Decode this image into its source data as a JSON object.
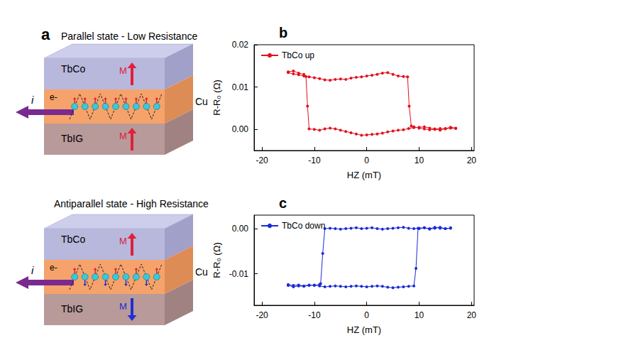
{
  "diagram": {
    "panel": "a",
    "states": [
      {
        "title": "Parallel state - Low Resistance",
        "layers": [
          "TbCo",
          "Cu",
          "TbIG"
        ],
        "electron": "e-",
        "current": "i",
        "magnetization": [
          {
            "label": "M",
            "direction": "up"
          },
          {
            "label": "M",
            "direction": "up"
          }
        ]
      },
      {
        "title": "Antiparallel state - High Resistance",
        "layers": [
          "TbCo",
          "Cu",
          "TbIG"
        ],
        "electron": "e-",
        "current": "i",
        "magnetization": [
          {
            "label": "M",
            "direction": "up"
          },
          {
            "label": "M",
            "direction": "down"
          }
        ]
      }
    ]
  },
  "chart_data": [
    {
      "panel": "b",
      "type": "line",
      "x_label": "HZ (mT)",
      "y_label": "R-R₀ (Ω)",
      "xlim": [
        -21.5,
        20.5
      ],
      "xticks": [
        -20,
        -10,
        0,
        10,
        20
      ],
      "ylim": [
        -0.005,
        0.02
      ],
      "yticks": [
        {
          "value": 0,
          "label": "0.00"
        },
        {
          "value": 0.01,
          "label": "0.01"
        },
        {
          "value": 0.02,
          "label": "0.02"
        }
      ],
      "grid": false,
      "legend": "upper left",
      "series": [
        {
          "name": "TbCo up",
          "color": "#e3101e",
          "marker": "circle",
          "line_style": "solid",
          "x": [
            17,
            16,
            15,
            14,
            13,
            12,
            11,
            10,
            9,
            8,
            7,
            6,
            5,
            4,
            3,
            2,
            1,
            0,
            -1,
            -2,
            -3,
            -4,
            -5,
            -6,
            -7,
            -8,
            -9,
            -10,
            -11,
            -11.3,
            -11.6,
            -12,
            -13,
            -14,
            -15,
            -15,
            -14,
            -13,
            -12,
            -11,
            -10,
            -9,
            -8,
            -7,
            -6,
            -5,
            -4,
            -3,
            -2,
            -1,
            0,
            1,
            2,
            3,
            4,
            5,
            6,
            7,
            7.8,
            8.1,
            8.5,
            9,
            10,
            11,
            12,
            13,
            14,
            15,
            16,
            17
          ],
          "values": [
            0.0003,
            0.0005,
            0.0002,
            -0.0002,
            0.0001,
            0.0003,
            0.0006,
            0.0005,
            0.0004,
            0.0002,
            -0.0001,
            -0.0002,
            -0.0004,
            -0.0006,
            -0.0009,
            -0.0011,
            -0.0012,
            -0.0013,
            -0.0014,
            -0.0011,
            -0.0008,
            -0.0005,
            -0.0002,
            0.0001,
            0.0003,
            0.0001,
            -0.0002,
            0.0,
            0.0001,
            0.0055,
            0.0125,
            0.013,
            0.0133,
            0.0138,
            0.0136,
            0.0134,
            0.0131,
            0.0129,
            0.0126,
            0.0124,
            0.0122,
            0.012,
            0.0117,
            0.0116,
            0.0118,
            0.0119,
            0.0118,
            0.0121,
            0.0123,
            0.0124,
            0.0126,
            0.0128,
            0.013,
            0.0133,
            0.0134,
            0.013,
            0.0126,
            0.0125,
            0.0124,
            0.0055,
            0.0008,
            0.0006,
            0.0003,
            0.0001,
            -0.0001,
            0.0,
            0.0002,
            0.0001,
            0.0003,
            0.0002
          ]
        }
      ]
    },
    {
      "panel": "c",
      "type": "line",
      "x_label": "HZ (mT)",
      "y_label": "R-R₀ (Ω)",
      "xlim": [
        -21.5,
        20.5
      ],
      "xticks": [
        -20,
        -10,
        0,
        10,
        20
      ],
      "ylim": [
        -0.017,
        0.003
      ],
      "yticks": [
        {
          "value": -0.01,
          "label": "-0.01"
        },
        {
          "value": 0,
          "label": "0.00"
        }
      ],
      "grid": false,
      "legend": "upper left",
      "series": [
        {
          "name": "TbCo down",
          "color": "#1a2bd6",
          "marker": "circle",
          "line_style": "solid",
          "x": [
            -15,
            -14,
            -13,
            -12,
            -11,
            -10,
            -9,
            -8,
            -7,
            -6,
            -5,
            -4,
            -3,
            -2,
            -1,
            0,
            1,
            2,
            3,
            4,
            5,
            6,
            7,
            8,
            9,
            9.4,
            9.8,
            10,
            11,
            12,
            13,
            14,
            15,
            16,
            16,
            15,
            14,
            13,
            12,
            11,
            10,
            9,
            8,
            7,
            6,
            5,
            4,
            3,
            2,
            1,
            0,
            -1,
            -2,
            -3,
            -4,
            -5,
            -6,
            -7,
            -8,
            -8.4,
            -8.8,
            -9,
            -10,
            -11,
            -12,
            -13,
            -14,
            -15
          ],
          "values": [
            -0.0126,
            -0.0129,
            -0.0127,
            -0.0128,
            -0.0126,
            -0.0125,
            -0.0127,
            -0.0129,
            -0.0128,
            -0.0127,
            -0.0128,
            -0.0129,
            -0.0128,
            -0.0127,
            -0.0128,
            -0.0129,
            -0.0128,
            -0.0127,
            -0.0128,
            -0.013,
            -0.0131,
            -0.013,
            -0.0129,
            -0.0128,
            -0.0127,
            -0.0088,
            0.0001,
            0.0,
            0.0002,
            -0.0001,
            0.0001,
            0.0003,
            0.0,
            0.0001,
            0.0002,
            0.0,
            0.0001,
            0.0003,
            0.0,
            0.0002,
            0.0001,
            0.0,
            0.0001,
            0.0003,
            0.0002,
            0.0001,
            0.0,
            -0.0001,
            0.0,
            0.0002,
            0.0001,
            0.0,
            0.0002,
            0.0001,
            0.0,
            -0.0001,
            0.0,
            0.0001,
            0.0,
            -0.0055,
            -0.0122,
            -0.0124,
            -0.0126,
            -0.0125,
            -0.0127,
            -0.0125,
            -0.0126,
            -0.0124
          ]
        }
      ]
    }
  ]
}
